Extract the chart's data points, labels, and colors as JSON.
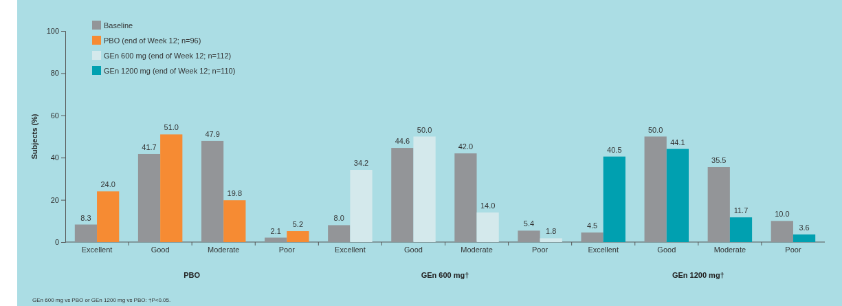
{
  "chart_data": {
    "type": "bar",
    "ylabel": "Subjects (%)",
    "categories": [
      "Excellent",
      "Good",
      "Moderate",
      "Poor",
      "Excellent",
      "Good",
      "Moderate",
      "Poor",
      "Excellent",
      "Good",
      "Moderate",
      "Poor"
    ],
    "series": [
      {
        "name": "Baseline",
        "color": "#939598",
        "values": [
          8.3,
          41.7,
          47.9,
          2.1,
          8.0,
          44.6,
          42.0,
          5.4,
          4.5,
          50.0,
          35.5,
          10.0
        ],
        "value_labels": [
          "8.3",
          "41.7",
          "47.9",
          "2.1",
          "8.0",
          "44.6",
          "42.0",
          "5.4",
          "4.5",
          "50.0",
          "35.5",
          "10.0"
        ]
      },
      {
        "name": "PBO (end of Week 12; n=96)",
        "color": "#f68b33",
        "values": [
          24.0,
          51.0,
          19.8,
          5.2,
          null,
          null,
          null,
          null,
          null,
          null,
          null,
          null
        ],
        "value_labels": [
          "24.0",
          "51.0",
          "19.8",
          "5.2",
          null,
          null,
          null,
          null,
          null,
          null,
          null,
          null
        ]
      },
      {
        "name": "GEn 600 mg (end of Week 12; n=112)",
        "color": "#d4e9ec",
        "values": [
          null,
          null,
          null,
          null,
          34.2,
          50.0,
          14.0,
          1.8,
          null,
          null,
          null,
          null
        ],
        "value_labels": [
          null,
          null,
          null,
          null,
          "34.2",
          "50.0",
          "14.0",
          "1.8",
          null,
          null,
          null,
          null
        ]
      },
      {
        "name": "GEn 1200 mg (end of Week 12; n=110)",
        "color": "#00a0b0",
        "values": [
          null,
          null,
          null,
          null,
          null,
          null,
          null,
          null,
          40.5,
          44.1,
          11.7,
          3.6
        ],
        "value_labels": [
          null,
          null,
          null,
          null,
          null,
          null,
          null,
          null,
          "40.5",
          "44.1",
          "11.7",
          "3.6"
        ]
      }
    ],
    "ylim": [
      0,
      100
    ],
    "yticks": [
      0,
      20,
      40,
      60,
      80,
      100
    ],
    "grid": false,
    "legend": "top left",
    "annotations": [
      "PBO",
      "GEn 600 mg†",
      "GEn 1200 mg†",
      "GEn 600 mg vs PBO or GEn 1200 mg vs PBO: †P<0.05."
    ]
  }
}
